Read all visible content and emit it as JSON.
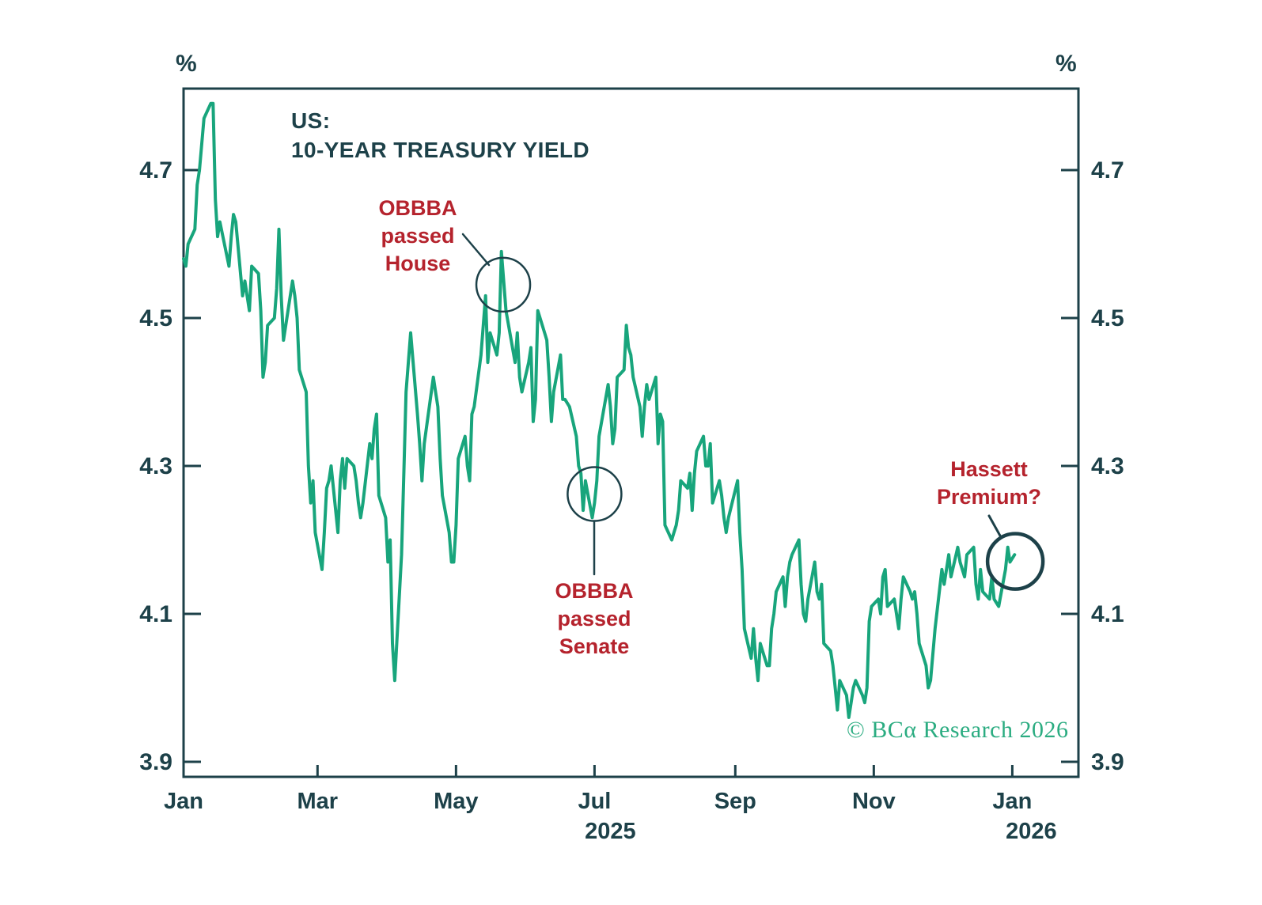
{
  "title": {
    "line1": "US:",
    "line2": "10-YEAR TREASURY YIELD"
  },
  "y_axis": {
    "unit_left": "%",
    "unit_right": "%",
    "tick_labels": [
      "4.7",
      "4.5",
      "4.3",
      "4.1",
      "3.9"
    ]
  },
  "x_axis": {
    "tick_labels": [
      "Jan",
      "Mar",
      "May",
      "Jul",
      "Sep",
      "Nov",
      "Jan"
    ],
    "tick_days": [
      0,
      59,
      120,
      181,
      243,
      304,
      365
    ],
    "year_labels": [
      {
        "text": "2025",
        "tick_index": 3,
        "dx": 20
      },
      {
        "text": "2026",
        "tick_index": 6,
        "dx": 24
      }
    ]
  },
  "annotations": {
    "house": {
      "lines": [
        "OBBBA",
        "passed",
        "House"
      ],
      "circle": {
        "day": 140.8,
        "value": 4.545,
        "r": 34,
        "stroke_width": 2.5
      }
    },
    "senate": {
      "lines": [
        "OBBBA",
        "passed",
        "Senate"
      ],
      "circle": {
        "day": 181.0,
        "value": 4.262,
        "r": 34,
        "stroke_width": 2.5
      }
    },
    "hassett": {
      "lines": [
        "Hassett",
        "Premium?"
      ],
      "circle": {
        "day": 366.3,
        "value": 4.171,
        "r": 35,
        "stroke_width": 4.5
      }
    }
  },
  "credit": "© BCα Research 2026",
  "colors": {
    "line": "#18a57c",
    "axis": "#1d4149",
    "annotation_red": "#b5232d",
    "credit_green": "#2bac81",
    "background": "#ffffff"
  },
  "chart_data": {
    "type": "line",
    "title": "US: 10-YEAR TREASURY YIELD",
    "unit": "%",
    "xlabel": "",
    "ylabel": "10-year Treasury yield (%)",
    "x_unit": "days since Jan 1, 2025",
    "xlim_days": [
      0,
      394
    ],
    "ylim": [
      3.88,
      4.81
    ],
    "y_ticks": [
      4.7,
      4.5,
      4.3,
      4.1,
      3.9
    ],
    "x_tick_labels": [
      "Jan",
      "Mar",
      "May",
      "Jul",
      "Sep",
      "Nov",
      "Jan"
    ],
    "x_tick_days": [
      0,
      59,
      120,
      181,
      243,
      304,
      365
    ],
    "grid": false,
    "legend": false,
    "events": [
      {
        "label": "OBBBA passed House",
        "day": 140,
        "value": 4.59
      },
      {
        "label": "OBBBA passed Senate",
        "day": 181,
        "value": 4.25
      },
      {
        "label": "Hassett Premium?",
        "day": 366,
        "value": 4.18
      }
    ],
    "series": [
      {
        "name": "US 10-year Treasury yield",
        "points": [
          [
            0,
            4.58
          ],
          [
            1,
            4.57
          ],
          [
            2,
            4.6
          ],
          [
            5,
            4.62
          ],
          [
            6,
            4.68
          ],
          [
            7,
            4.7
          ],
          [
            9,
            4.77
          ],
          [
            12,
            4.79
          ],
          [
            13,
            4.79
          ],
          [
            14,
            4.66
          ],
          [
            15,
            4.61
          ],
          [
            16,
            4.63
          ],
          [
            20,
            4.57
          ],
          [
            21,
            4.61
          ],
          [
            22,
            4.64
          ],
          [
            23,
            4.63
          ],
          [
            26,
            4.53
          ],
          [
            27,
            4.55
          ],
          [
            28,
            4.53
          ],
          [
            29,
            4.51
          ],
          [
            30,
            4.57
          ],
          [
            33,
            4.56
          ],
          [
            34,
            4.51
          ],
          [
            35,
            4.42
          ],
          [
            36,
            4.44
          ],
          [
            37,
            4.49
          ],
          [
            40,
            4.5
          ],
          [
            41,
            4.54
          ],
          [
            42,
            4.62
          ],
          [
            43,
            4.53
          ],
          [
            44,
            4.47
          ],
          [
            48,
            4.55
          ],
          [
            49,
            4.53
          ],
          [
            50,
            4.5
          ],
          [
            51,
            4.43
          ],
          [
            54,
            4.4
          ],
          [
            55,
            4.3
          ],
          [
            56,
            4.25
          ],
          [
            57,
            4.28
          ],
          [
            58,
            4.21
          ],
          [
            61,
            4.16
          ],
          [
            62,
            4.21
          ],
          [
            63,
            4.27
          ],
          [
            64,
            4.28
          ],
          [
            65,
            4.3
          ],
          [
            68,
            4.21
          ],
          [
            69,
            4.28
          ],
          [
            70,
            4.31
          ],
          [
            71,
            4.27
          ],
          [
            72,
            4.31
          ],
          [
            75,
            4.3
          ],
          [
            76,
            4.28
          ],
          [
            77,
            4.25
          ],
          [
            78,
            4.23
          ],
          [
            79,
            4.25
          ],
          [
            82,
            4.33
          ],
          [
            83,
            4.31
          ],
          [
            84,
            4.35
          ],
          [
            85,
            4.37
          ],
          [
            86,
            4.26
          ],
          [
            89,
            4.23
          ],
          [
            90,
            4.17
          ],
          [
            91,
            4.2
          ],
          [
            92,
            4.06
          ],
          [
            93,
            4.01
          ],
          [
            96,
            4.18
          ],
          [
            97,
            4.29
          ],
          [
            98,
            4.4
          ],
          [
            99,
            4.44
          ],
          [
            100,
            4.48
          ],
          [
            103,
            4.37
          ],
          [
            104,
            4.33
          ],
          [
            105,
            4.28
          ],
          [
            106,
            4.33
          ],
          [
            110,
            4.42
          ],
          [
            111,
            4.4
          ],
          [
            112,
            4.38
          ],
          [
            113,
            4.31
          ],
          [
            114,
            4.26
          ],
          [
            117,
            4.21
          ],
          [
            118,
            4.17
          ],
          [
            119,
            4.17
          ],
          [
            120,
            4.22
          ],
          [
            121,
            4.31
          ],
          [
            124,
            4.34
          ],
          [
            125,
            4.3
          ],
          [
            126,
            4.28
          ],
          [
            127,
            4.37
          ],
          [
            128,
            4.38
          ],
          [
            131,
            4.45
          ],
          [
            132,
            4.49
          ],
          [
            133,
            4.53
          ],
          [
            134,
            4.44
          ],
          [
            135,
            4.48
          ],
          [
            138,
            4.45
          ],
          [
            139,
            4.48
          ],
          [
            140,
            4.59
          ],
          [
            141,
            4.55
          ],
          [
            142,
            4.51
          ],
          [
            146,
            4.44
          ],
          [
            147,
            4.48
          ],
          [
            148,
            4.42
          ],
          [
            149,
            4.4
          ],
          [
            152,
            4.44
          ],
          [
            153,
            4.46
          ],
          [
            154,
            4.36
          ],
          [
            155,
            4.39
          ],
          [
            156,
            4.51
          ],
          [
            159,
            4.48
          ],
          [
            160,
            4.47
          ],
          [
            161,
            4.42
          ],
          [
            162,
            4.36
          ],
          [
            163,
            4.4
          ],
          [
            166,
            4.45
          ],
          [
            167,
            4.39
          ],
          [
            168,
            4.39
          ],
          [
            170,
            4.38
          ],
          [
            173,
            4.34
          ],
          [
            174,
            4.3
          ],
          [
            175,
            4.29
          ],
          [
            176,
            4.24
          ],
          [
            177,
            4.28
          ],
          [
            180,
            4.23
          ],
          [
            181,
            4.25
          ],
          [
            182,
            4.28
          ],
          [
            183,
            4.34
          ],
          [
            187,
            4.41
          ],
          [
            188,
            4.38
          ],
          [
            189,
            4.33
          ],
          [
            190,
            4.35
          ],
          [
            191,
            4.42
          ],
          [
            194,
            4.43
          ],
          [
            195,
            4.49
          ],
          [
            196,
            4.46
          ],
          [
            197,
            4.45
          ],
          [
            198,
            4.42
          ],
          [
            201,
            4.38
          ],
          [
            202,
            4.34
          ],
          [
            203,
            4.38
          ],
          [
            204,
            4.41
          ],
          [
            205,
            4.39
          ],
          [
            208,
            4.42
          ],
          [
            209,
            4.33
          ],
          [
            210,
            4.37
          ],
          [
            211,
            4.36
          ],
          [
            212,
            4.22
          ],
          [
            215,
            4.2
          ],
          [
            216,
            4.21
          ],
          [
            217,
            4.22
          ],
          [
            218,
            4.24
          ],
          [
            219,
            4.28
          ],
          [
            222,
            4.27
          ],
          [
            223,
            4.29
          ],
          [
            224,
            4.24
          ],
          [
            225,
            4.29
          ],
          [
            226,
            4.32
          ],
          [
            229,
            4.34
          ],
          [
            230,
            4.3
          ],
          [
            231,
            4.3
          ],
          [
            232,
            4.33
          ],
          [
            233,
            4.25
          ],
          [
            236,
            4.28
          ],
          [
            237,
            4.26
          ],
          [
            238,
            4.23
          ],
          [
            239,
            4.21
          ],
          [
            240,
            4.23
          ],
          [
            244,
            4.28
          ],
          [
            245,
            4.21
          ],
          [
            246,
            4.16
          ],
          [
            247,
            4.08
          ],
          [
            250,
            4.04
          ],
          [
            251,
            4.08
          ],
          [
            252,
            4.04
          ],
          [
            253,
            4.01
          ],
          [
            254,
            4.06
          ],
          [
            257,
            4.03
          ],
          [
            258,
            4.03
          ],
          [
            259,
            4.08
          ],
          [
            260,
            4.1
          ],
          [
            261,
            4.13
          ],
          [
            264,
            4.15
          ],
          [
            265,
            4.11
          ],
          [
            266,
            4.15
          ],
          [
            267,
            4.17
          ],
          [
            268,
            4.18
          ],
          [
            271,
            4.2
          ],
          [
            272,
            4.14
          ],
          [
            273,
            4.1
          ],
          [
            274,
            4.09
          ],
          [
            275,
            4.12
          ],
          [
            278,
            4.17
          ],
          [
            279,
            4.13
          ],
          [
            280,
            4.12
          ],
          [
            281,
            4.14
          ],
          [
            282,
            4.06
          ],
          [
            285,
            4.05
          ],
          [
            286,
            4.03
          ],
          [
            287,
            4.0
          ],
          [
            288,
            3.97
          ],
          [
            289,
            4.01
          ],
          [
            292,
            3.99
          ],
          [
            293,
            3.96
          ],
          [
            294,
            3.98
          ],
          [
            295,
            4.0
          ],
          [
            296,
            4.01
          ],
          [
            299,
            3.99
          ],
          [
            300,
            3.98
          ],
          [
            301,
            4.0
          ],
          [
            302,
            4.09
          ],
          [
            303,
            4.11
          ],
          [
            306,
            4.12
          ],
          [
            307,
            4.1
          ],
          [
            308,
            4.15
          ],
          [
            309,
            4.16
          ],
          [
            310,
            4.11
          ],
          [
            313,
            4.12
          ],
          [
            315,
            4.08
          ],
          [
            316,
            4.12
          ],
          [
            317,
            4.15
          ],
          [
            320,
            4.13
          ],
          [
            321,
            4.12
          ],
          [
            322,
            4.13
          ],
          [
            323,
            4.1
          ],
          [
            324,
            4.06
          ],
          [
            327,
            4.03
          ],
          [
            328,
            4.0
          ],
          [
            329,
            4.01
          ],
          [
            331,
            4.08
          ],
          [
            334,
            4.16
          ],
          [
            335,
            4.14
          ],
          [
            337,
            4.18
          ],
          [
            338,
            4.15
          ],
          [
            341,
            4.19
          ],
          [
            342,
            4.17
          ],
          [
            344,
            4.15
          ],
          [
            345,
            4.18
          ],
          [
            348,
            4.19
          ],
          [
            349,
            4.14
          ],
          [
            350,
            4.12
          ],
          [
            351,
            4.16
          ],
          [
            352,
            4.13
          ],
          [
            355,
            4.12
          ],
          [
            356,
            4.15
          ],
          [
            357,
            4.12
          ],
          [
            359,
            4.11
          ],
          [
            362,
            4.16
          ],
          [
            363,
            4.19
          ],
          [
            364,
            4.17
          ],
          [
            366,
            4.18
          ]
        ]
      }
    ]
  }
}
